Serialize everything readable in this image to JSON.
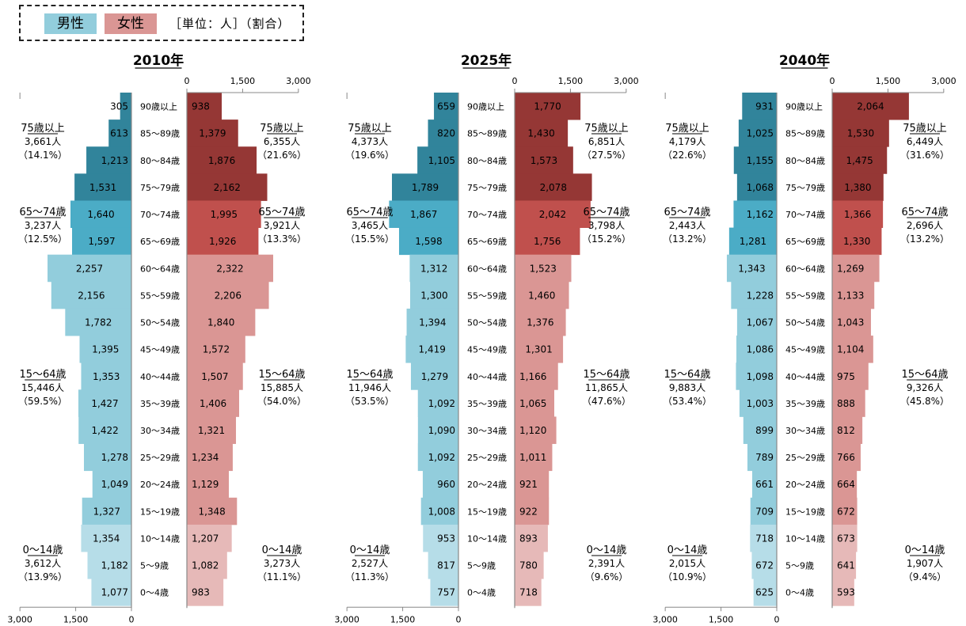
{
  "legend": {
    "male_label": "男性",
    "female_label": "女性",
    "unit_label": "［単位：人］（割合）",
    "colors": {
      "male_light": "#b6dde8",
      "male": "#92cddc",
      "male_mid": "#4bacc6",
      "male_dark": "#31849b",
      "female_light": "#e6b9b8",
      "female": "#da9694",
      "female_mid": "#c0504d",
      "female_dark": "#953735"
    }
  },
  "chart_data": [
    {
      "type": "bar",
      "title": "2010年",
      "x_ticks": [
        "0",
        "1,500",
        "3,000"
      ],
      "xlim": [
        0,
        3000
      ],
      "categories": [
        "90歳以上",
        "85～89歳",
        "80～84歳",
        "75～79歳",
        "70～74歳",
        "65～69歳",
        "60～64歳",
        "55～59歳",
        "50～54歳",
        "45～49歳",
        "40～44歳",
        "35～39歳",
        "30～34歳",
        "25～29歳",
        "20～24歳",
        "15～19歳",
        "10～14歳",
        "5～9歳",
        "0～4歳"
      ],
      "series": [
        {
          "name": "男性",
          "values": [
            305,
            613,
            1213,
            1531,
            1640,
            1597,
            2257,
            2156,
            1782,
            1395,
            1353,
            1427,
            1422,
            1278,
            1049,
            1327,
            1354,
            1182,
            1077
          ],
          "labels": [
            "305",
            "613",
            "1,213",
            "1,531",
            "1,640",
            "1,597",
            "2,257",
            "2,156",
            "1,782",
            "1,395",
            "1,353",
            "1,427",
            "1,422",
            "1,278",
            "1,049",
            "1,327",
            "1,354",
            "1,182",
            "1,077"
          ]
        },
        {
          "name": "女性",
          "values": [
            938,
            1379,
            1876,
            2162,
            1995,
            1926,
            2322,
            2206,
            1840,
            1572,
            1507,
            1406,
            1321,
            1234,
            1129,
            1348,
            1207,
            1082,
            983
          ],
          "labels": [
            "938",
            "1,379",
            "1,876",
            "2,162",
            "1,995",
            "1,926",
            "2,322",
            "2,206",
            "1,840",
            "1,572",
            "1,507",
            "1,406",
            "1,321",
            "1,234",
            "1,129",
            "1,348",
            "1,207",
            "1,082",
            "983"
          ]
        }
      ],
      "groups": [
        {
          "label": "75歳以上",
          "male": [
            "3,661人",
            "（14.1%）"
          ],
          "female": [
            "6,355人",
            "（21.6%）"
          ]
        },
        {
          "label": "65～74歳",
          "male": [
            "3,237人",
            "（12.5%）"
          ],
          "female": [
            "3,921人",
            "（13.3%）"
          ]
        },
        {
          "label": "15～64歳",
          "male": [
            "15,446人",
            "（59.5%）"
          ],
          "female": [
            "15,885人",
            "（54.0%）"
          ]
        },
        {
          "label": "0～14歳",
          "male": [
            "3,612人",
            "（13.9%）"
          ],
          "female": [
            "3,273人",
            "（11.1%）"
          ]
        }
      ]
    },
    {
      "type": "bar",
      "title": "2025年",
      "x_ticks": [
        "0",
        "1,500",
        "3,000"
      ],
      "xlim": [
        0,
        3000
      ],
      "categories": [
        "90歳以上",
        "85～89歳",
        "80～84歳",
        "75～79歳",
        "70～74歳",
        "65～69歳",
        "60～64歳",
        "55～59歳",
        "50～54歳",
        "45～49歳",
        "40～44歳",
        "35～39歳",
        "30～34歳",
        "25～29歳",
        "20～24歳",
        "15～19歳",
        "10～14歳",
        "5～9歳",
        "0～4歳"
      ],
      "series": [
        {
          "name": "男性",
          "values": [
            659,
            820,
            1105,
            1789,
            1867,
            1598,
            1312,
            1300,
            1394,
            1419,
            1279,
            1092,
            1090,
            1092,
            960,
            1008,
            953,
            817,
            757
          ],
          "labels": [
            "659",
            "820",
            "1,105",
            "1,789",
            "1,867",
            "1,598",
            "1,312",
            "1,300",
            "1,394",
            "1,419",
            "1,279",
            "1,092",
            "1,090",
            "1,092",
            "960",
            "1,008",
            "953",
            "817",
            "757"
          ]
        },
        {
          "name": "女性",
          "values": [
            1770,
            1430,
            1573,
            2078,
            2042,
            1756,
            1523,
            1460,
            1376,
            1301,
            1166,
            1065,
            1120,
            1011,
            921,
            922,
            893,
            780,
            718
          ],
          "labels": [
            "1,770",
            "1,430",
            "1,573",
            "2,078",
            "2,042",
            "1,756",
            "1,523",
            "1,460",
            "1,376",
            "1,301",
            "1,166",
            "1,065",
            "1,120",
            "1,011",
            "921",
            "922",
            "893",
            "780",
            "718"
          ]
        }
      ],
      "groups": [
        {
          "label": "75歳以上",
          "male": [
            "4,373人",
            "（19.6%）"
          ],
          "female": [
            "6,851人",
            "（27.5%）"
          ]
        },
        {
          "label": "65～74歳",
          "male": [
            "3,465人",
            "（15.5%）"
          ],
          "female": [
            "3,798人",
            "（15.2%）"
          ]
        },
        {
          "label": "15～64歳",
          "male": [
            "11,946人",
            "（53.5%）"
          ],
          "female": [
            "11,865人",
            "（47.6%）"
          ]
        },
        {
          "label": "0～14歳",
          "male": [
            "2,527人",
            "（11.3%）"
          ],
          "female": [
            "2,391人",
            "（9.6%）"
          ]
        }
      ]
    },
    {
      "type": "bar",
      "title": "2040年",
      "x_ticks": [
        "0",
        "1,500",
        "3,000"
      ],
      "xlim": [
        0,
        3000
      ],
      "categories": [
        "90歳以上",
        "85～89歳",
        "80～84歳",
        "75～79歳",
        "70～74歳",
        "65～69歳",
        "60～64歳",
        "55～59歳",
        "50～54歳",
        "45～49歳",
        "40～44歳",
        "35～39歳",
        "30～34歳",
        "25～29歳",
        "20～24歳",
        "15～19歳",
        "10～14歳",
        "5～9歳",
        "0～4歳"
      ],
      "series": [
        {
          "name": "男性",
          "values": [
            931,
            1025,
            1155,
            1068,
            1162,
            1281,
            1343,
            1228,
            1067,
            1086,
            1098,
            1003,
            899,
            789,
            661,
            709,
            718,
            672,
            625
          ],
          "labels": [
            "931",
            "1,025",
            "1,155",
            "1,068",
            "1,162",
            "1,281",
            "1,343",
            "1,228",
            "1,067",
            "1,086",
            "1,098",
            "1,003",
            "899",
            "789",
            "661",
            "709",
            "718",
            "672",
            "625"
          ]
        },
        {
          "name": "女性",
          "values": [
            2064,
            1530,
            1475,
            1380,
            1366,
            1330,
            1269,
            1133,
            1043,
            1104,
            975,
            888,
            812,
            766,
            664,
            672,
            673,
            641,
            593
          ],
          "labels": [
            "2,064",
            "1,530",
            "1,475",
            "1,380",
            "1,366",
            "1,330",
            "1,269",
            "1,133",
            "1,043",
            "1,104",
            "975",
            "888",
            "812",
            "766",
            "664",
            "672",
            "673",
            "641",
            "593"
          ]
        }
      ],
      "groups": [
        {
          "label": "75歳以上",
          "male": [
            "4,179人",
            "（22.6%）"
          ],
          "female": [
            "6,449人",
            "（31.6%）"
          ]
        },
        {
          "label": "65～74歳",
          "male": [
            "2,443人",
            "（13.2%）"
          ],
          "female": [
            "2,696人",
            "（13.2%）"
          ]
        },
        {
          "label": "15～64歳",
          "male": [
            "9,883人",
            "（53.4%）"
          ],
          "female": [
            "9,326人",
            "（45.8%）"
          ]
        },
        {
          "label": "0～14歳",
          "male": [
            "2,015人",
            "（10.9%）"
          ],
          "female": [
            "1,907人",
            "（9.4%）"
          ]
        }
      ]
    }
  ]
}
